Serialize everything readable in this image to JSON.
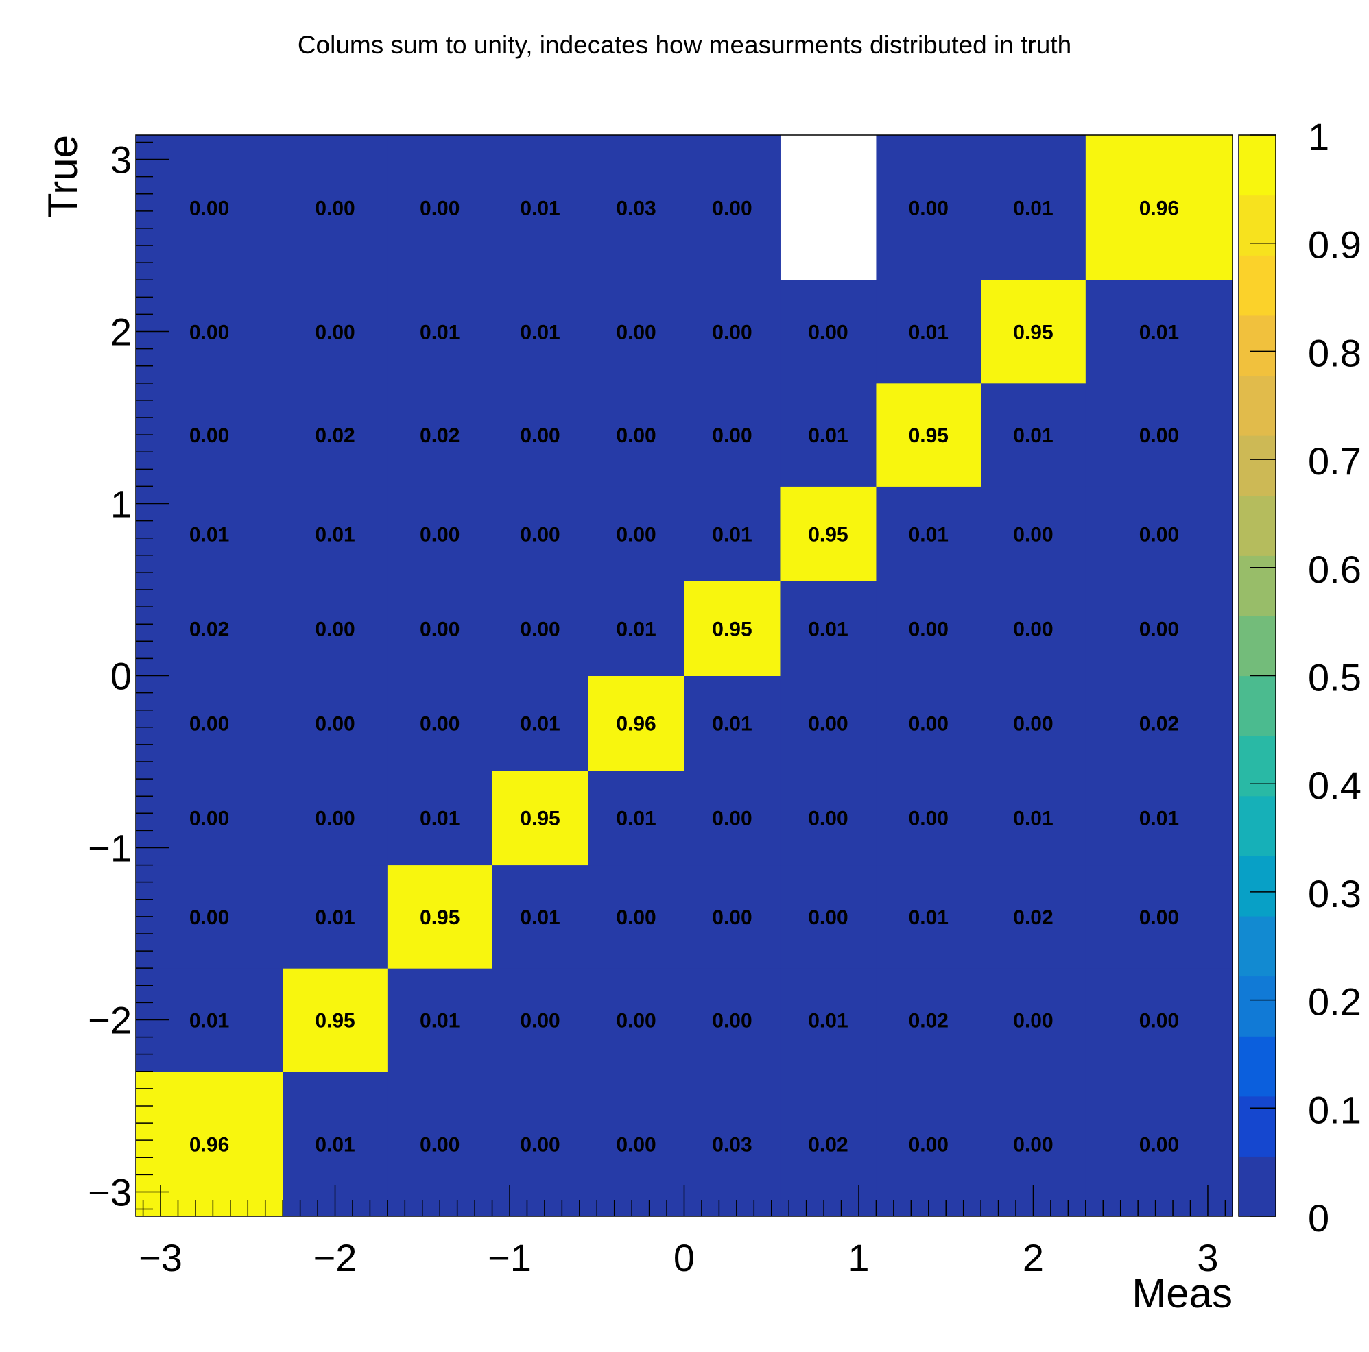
{
  "chart_data": {
    "type": "heatmap",
    "title": "Colums sum to unity, indecates how measurments distributed in truth",
    "xlabel": "Meas",
    "ylabel": "True",
    "xlim": [
      -3.14159,
      3.14159
    ],
    "ylim": [
      -3.14159,
      3.14159
    ],
    "bin_edges": [
      -3.14159,
      -2.3,
      -1.7,
      -1.1,
      -0.55,
      0.0,
      0.55,
      1.1,
      1.7,
      2.3,
      3.14159
    ],
    "x_ticks": [
      "−3",
      "−2",
      "−1",
      "0",
      "1",
      "2",
      "3"
    ],
    "y_ticks": [
      "−3",
      "−2",
      "−1",
      "0",
      "1",
      "2",
      "3"
    ],
    "colorbar": {
      "range": [
        0,
        1
      ],
      "tick_labels": [
        "0",
        "0.1",
        "0.2",
        "0.3",
        "0.4",
        "0.5",
        "0.6",
        "0.7",
        "0.8",
        "0.9",
        "1"
      ]
    },
    "values": [
      [
        "0.96",
        "0.01",
        "0.00",
        "0.00",
        "0.00",
        "0.03",
        "0.02",
        "0.00",
        "0.00",
        "0.00"
      ],
      [
        "0.01",
        "0.95",
        "0.01",
        "0.00",
        "0.00",
        "0.00",
        "0.01",
        "0.02",
        "0.00",
        "0.00"
      ],
      [
        "0.00",
        "0.01",
        "0.95",
        "0.01",
        "0.00",
        "0.00",
        "0.00",
        "0.01",
        "0.02",
        "0.00"
      ],
      [
        "0.00",
        "0.00",
        "0.01",
        "0.95",
        "0.01",
        "0.00",
        "0.00",
        "0.00",
        "0.01",
        "0.01"
      ],
      [
        "0.00",
        "0.00",
        "0.00",
        "0.01",
        "0.96",
        "0.01",
        "0.00",
        "0.00",
        "0.00",
        "0.02"
      ],
      [
        "0.02",
        "0.00",
        "0.00",
        "0.00",
        "0.01",
        "0.95",
        "0.01",
        "0.00",
        "0.00",
        "0.00"
      ],
      [
        "0.01",
        "0.01",
        "0.00",
        "0.00",
        "0.00",
        "0.01",
        "0.95",
        "0.01",
        "0.00",
        "0.00"
      ],
      [
        "0.00",
        "0.02",
        "0.02",
        "0.00",
        "0.00",
        "0.00",
        "0.01",
        "0.95",
        "0.01",
        "0.00"
      ],
      [
        "0.00",
        "0.00",
        "0.01",
        "0.01",
        "0.00",
        "0.00",
        "0.00",
        "0.01",
        "0.95",
        "0.01"
      ],
      [
        "0.00",
        "0.00",
        "0.00",
        "0.01",
        "0.03",
        "0.00",
        null,
        "0.00",
        "0.01",
        "0.96"
      ]
    ],
    "grid": false,
    "colormap": [
      "#263ba7",
      "#1547cf",
      "#0b5fdd",
      "#117ad6",
      "#128ad1",
      "#08a0c6",
      "#16b0b8",
      "#29b9a5",
      "#4bbb8f",
      "#73bc7a",
      "#98bd69",
      "#b5bc5d",
      "#cdb955",
      "#e1bb4b",
      "#f1c13d",
      "#fbd22a",
      "#f7e21e",
      "#f8f60e"
    ]
  }
}
